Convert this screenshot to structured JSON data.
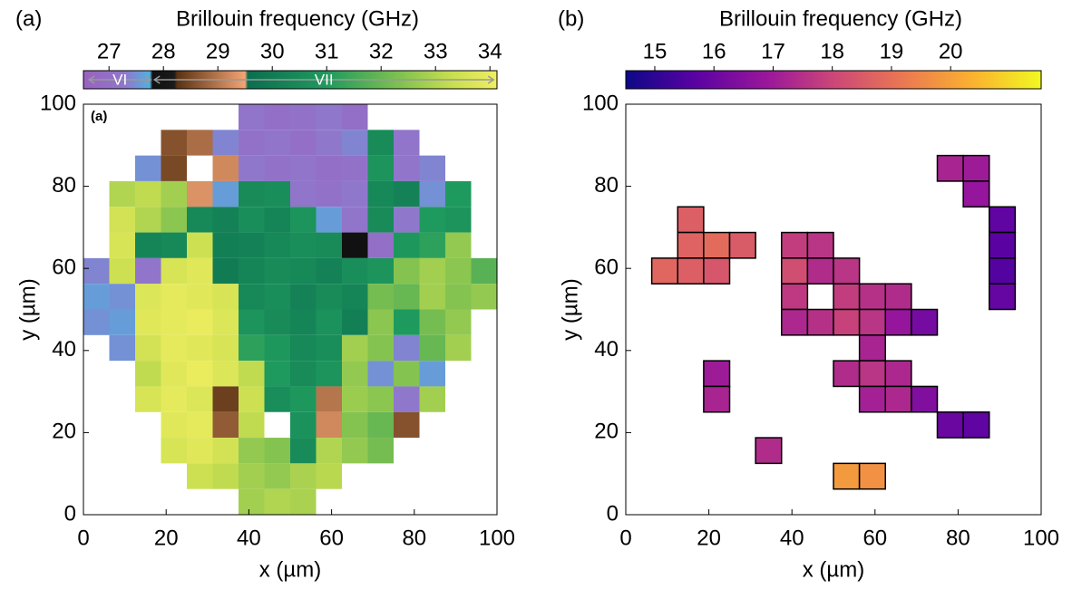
{
  "chart_data": [
    {
      "type": "heatmap",
      "panel_label": "(a)",
      "title": "Brillouin frequency (GHz)",
      "x_label": "x (µm)",
      "y_label": "y (µm)",
      "annotation": "(a)",
      "xlim": [
        0,
        100
      ],
      "ylim": [
        0,
        100
      ],
      "xticks": [
        0,
        20,
        40,
        60,
        80,
        100
      ],
      "yticks": [
        0,
        20,
        40,
        60,
        80,
        100
      ],
      "zlim": [
        26.53,
        34.13
      ],
      "zticks": [
        27,
        28,
        29,
        30,
        31,
        32,
        33,
        34
      ],
      "phases": [
        {
          "label": "VI",
          "range": [
            26.6,
            27.8
          ]
        },
        {
          "label": "VII",
          "range": [
            27.8,
            34.1
          ]
        }
      ],
      "colormap": [
        {
          "value": 26.53,
          "color": "#9a62bf"
        },
        {
          "value": 27.3,
          "color": "#8f78cc"
        },
        {
          "value": 27.75,
          "color": "#52b0e0"
        },
        {
          "value": 27.8,
          "color": "#111111"
        },
        {
          "value": 28.2,
          "color": "#1a1a1a"
        },
        {
          "value": 28.25,
          "color": "#5a3212"
        },
        {
          "value": 29.5,
          "color": "#f4a474"
        },
        {
          "value": 29.55,
          "color": "#0b6e4f"
        },
        {
          "value": 31.0,
          "color": "#1f9a5e"
        },
        {
          "value": 32.3,
          "color": "#7cc050"
        },
        {
          "value": 33.3,
          "color": "#c8de50"
        },
        {
          "value": 34.13,
          "color": "#f0ee60"
        }
      ],
      "z": [
        [
          null,
          null,
          null,
          null,
          null,
          null,
          27.2,
          27.0,
          27.1,
          27.3,
          27.0,
          null,
          null,
          null,
          null,
          null
        ],
        [
          null,
          null,
          null,
          28.6,
          28.9,
          27.4,
          27.1,
          27.2,
          27.0,
          27.3,
          27.4,
          30.5,
          27.2,
          null,
          null,
          null
        ],
        [
          null,
          null,
          27.5,
          28.5,
          null,
          29.2,
          27.3,
          27.1,
          27.2,
          27.0,
          27.1,
          30.8,
          27.2,
          27.4,
          null,
          null
        ],
        [
          null,
          33.0,
          33.2,
          32.8,
          29.3,
          27.6,
          30.5,
          30.6,
          27.2,
          27.1,
          27.3,
          30.4,
          30.2,
          27.5,
          31.0,
          null
        ],
        [
          null,
          33.5,
          33.0,
          32.5,
          30.4,
          30.2,
          30.6,
          30.3,
          30.8,
          27.6,
          27.2,
          30.5,
          27.3,
          31.0,
          30.8,
          null
        ],
        [
          null,
          33.6,
          30.3,
          30.4,
          33.4,
          30.1,
          30.2,
          30.4,
          30.6,
          30.5,
          27.8,
          27.0,
          30.9,
          31.2,
          32.6,
          null
        ],
        [
          27.4,
          33.4,
          27.2,
          33.6,
          33.8,
          30.0,
          30.3,
          30.5,
          30.4,
          30.2,
          30.6,
          30.8,
          32.4,
          32.8,
          32.5,
          31.8
        ],
        [
          27.6,
          27.5,
          33.7,
          33.9,
          33.8,
          33.6,
          30.4,
          30.6,
          30.2,
          30.5,
          30.3,
          32.2,
          32.0,
          32.8,
          32.4,
          32.6
        ],
        [
          27.5,
          27.6,
          33.8,
          33.9,
          34.0,
          33.7,
          30.8,
          30.5,
          30.3,
          30.7,
          30.1,
          32.5,
          31.0,
          32.2,
          32.6,
          null
        ],
        [
          null,
          27.5,
          33.5,
          33.9,
          33.8,
          33.6,
          31.2,
          30.9,
          30.4,
          30.6,
          32.8,
          32.4,
          27.4,
          32.0,
          32.8,
          null
        ],
        [
          null,
          null,
          33.2,
          33.8,
          34.0,
          33.7,
          33.2,
          31.0,
          30.5,
          30.8,
          32.6,
          27.5,
          32.4,
          27.6,
          null,
          null
        ],
        [
          null,
          null,
          33.6,
          33.9,
          33.7,
          28.4,
          33.4,
          30.6,
          30.9,
          29.0,
          32.7,
          32.5,
          27.3,
          32.8,
          null,
          null
        ],
        [
          null,
          null,
          null,
          33.8,
          33.9,
          28.7,
          33.2,
          null,
          30.7,
          29.2,
          32.4,
          32.0,
          28.6,
          null,
          null,
          null
        ],
        [
          null,
          null,
          null,
          33.6,
          33.8,
          33.5,
          32.6,
          32.4,
          30.5,
          33.0,
          32.6,
          32.2,
          null,
          null,
          null,
          null
        ],
        [
          null,
          null,
          null,
          null,
          33.4,
          33.2,
          32.8,
          32.6,
          32.9,
          33.1,
          null,
          null,
          null,
          null,
          null,
          null
        ],
        [
          null,
          null,
          null,
          null,
          null,
          null,
          32.8,
          33.0,
          32.9,
          null,
          null,
          null,
          null,
          null,
          null,
          null
        ]
      ]
    },
    {
      "type": "heatmap",
      "panel_label": "(b)",
      "title": "Brillouin frequency (GHz)",
      "x_label": "x (µm)",
      "y_label": "y (µm)",
      "xlim": [
        0,
        100
      ],
      "ylim": [
        0,
        100
      ],
      "xticks": [
        0,
        20,
        40,
        60,
        80,
        100
      ],
      "yticks": [
        0,
        20,
        40,
        60,
        80,
        100
      ],
      "zlim": [
        14.51,
        21.53
      ],
      "zticks": [
        15,
        16,
        17,
        18,
        19,
        20
      ],
      "cell_edge": "#000000",
      "colormap": [
        {
          "value": 14.51,
          "color": "#0d0887"
        },
        {
          "value": 15.7,
          "color": "#5b02a3"
        },
        {
          "value": 16.9,
          "color": "#9a179b"
        },
        {
          "value": 18.0,
          "color": "#cb4678"
        },
        {
          "value": 19.2,
          "color": "#eb7852"
        },
        {
          "value": 20.4,
          "color": "#fbb32f"
        },
        {
          "value": 21.53,
          "color": "#f0f921"
        }
      ],
      "z": [
        [
          null,
          null,
          null,
          null,
          null,
          null,
          null,
          null,
          null,
          null,
          null,
          null,
          null,
          null,
          null,
          null
        ],
        [
          null,
          null,
          null,
          null,
          null,
          null,
          null,
          null,
          null,
          null,
          null,
          null,
          null,
          null,
          null,
          null
        ],
        [
          null,
          null,
          null,
          null,
          null,
          null,
          null,
          null,
          null,
          null,
          null,
          null,
          17.2,
          17.0,
          null,
          null
        ],
        [
          null,
          null,
          null,
          null,
          null,
          null,
          null,
          null,
          null,
          null,
          null,
          null,
          null,
          16.8,
          null,
          null
        ],
        [
          null,
          null,
          18.6,
          null,
          null,
          null,
          null,
          null,
          null,
          null,
          null,
          null,
          null,
          null,
          15.8,
          null
        ],
        [
          null,
          null,
          18.7,
          18.9,
          18.5,
          null,
          17.8,
          17.6,
          null,
          null,
          null,
          null,
          null,
          null,
          15.7,
          null
        ],
        [
          null,
          18.8,
          18.6,
          18.4,
          null,
          null,
          18.2,
          17.4,
          17.6,
          null,
          null,
          null,
          null,
          null,
          15.6,
          null
        ],
        [
          null,
          null,
          null,
          null,
          null,
          null,
          17.7,
          null,
          17.8,
          17.5,
          17.4,
          null,
          null,
          null,
          15.9,
          null
        ],
        [
          null,
          null,
          null,
          null,
          null,
          null,
          17.3,
          17.5,
          17.9,
          17.6,
          16.8,
          16.2,
          null,
          null,
          null,
          null
        ],
        [
          null,
          null,
          null,
          null,
          null,
          null,
          null,
          null,
          null,
          17.2,
          null,
          null,
          null,
          null,
          null,
          null
        ],
        [
          null,
          null,
          null,
          17.0,
          null,
          null,
          null,
          null,
          17.4,
          17.6,
          17.3,
          null,
          null,
          null,
          null,
          null
        ],
        [
          null,
          null,
          null,
          17.2,
          null,
          null,
          null,
          null,
          null,
          17.1,
          17.3,
          16.4,
          null,
          null,
          null,
          null
        ],
        [
          null,
          null,
          null,
          null,
          null,
          null,
          null,
          null,
          null,
          null,
          null,
          null,
          16.0,
          15.8,
          null,
          null
        ],
        [
          null,
          null,
          null,
          null,
          null,
          17.4,
          null,
          null,
          null,
          null,
          null,
          null,
          null,
          null,
          null,
          null
        ],
        [
          null,
          null,
          null,
          null,
          null,
          null,
          null,
          null,
          19.9,
          19.7,
          null,
          null,
          null,
          null,
          null,
          null
        ],
        [
          null,
          null,
          null,
          null,
          null,
          null,
          null,
          null,
          null,
          null,
          null,
          null,
          null,
          null,
          null,
          null
        ]
      ]
    }
  ]
}
